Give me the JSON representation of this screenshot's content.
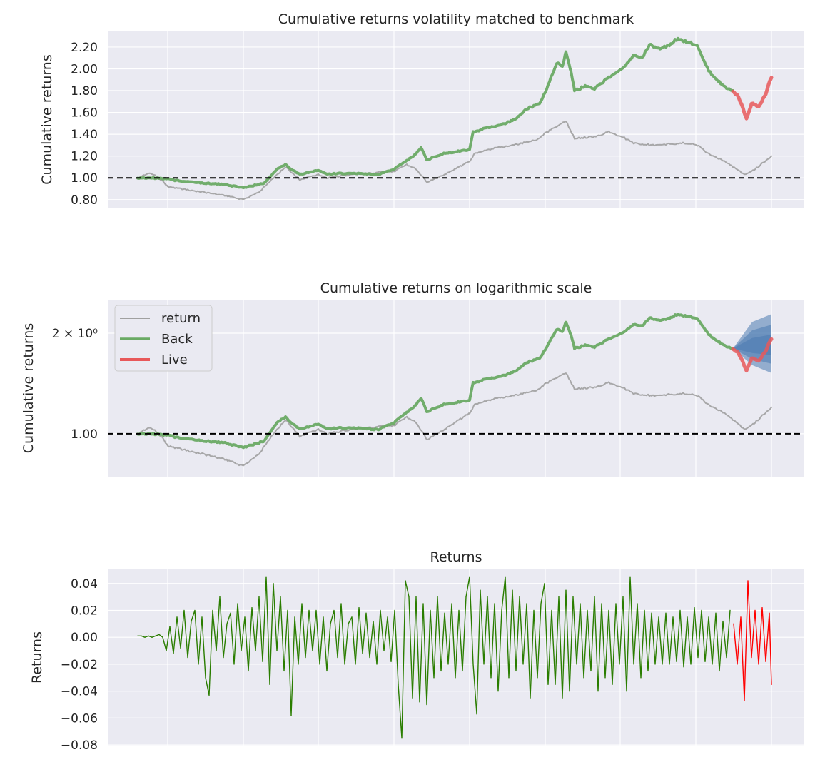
{
  "chart_data": [
    {
      "type": "line",
      "title": "Cumulative returns volatility matched to benchmark",
      "ylabel": "Cumulative returns",
      "xlabel": "",
      "yscale": "linear",
      "ylim": [
        0.72,
        2.35
      ],
      "xlim": [
        -42,
        934
      ],
      "yticks": [
        0.8,
        1.0,
        1.2,
        1.4,
        1.6,
        1.8,
        2.0,
        2.2
      ],
      "ytick_labels": [
        "0.80",
        "1.00",
        "1.20",
        "1.40",
        "1.60",
        "1.80",
        "2.00",
        "2.20"
      ],
      "xgrid": [
        42,
        148,
        253,
        359,
        465,
        571,
        676,
        782,
        888
      ],
      "baseline": 1.0,
      "grid": true,
      "series": [
        {
          "name": "return",
          "color": "#a0a0a0",
          "points": [
            [
              0,
              1.0
            ],
            [
              10,
              1.03
            ],
            [
              20,
              1.04
            ],
            [
              35,
              0.97
            ],
            [
              42,
              0.92
            ],
            [
              60,
              0.9
            ],
            [
              80,
              0.88
            ],
            [
              100,
              0.86
            ],
            [
              120,
              0.84
            ],
            [
              148,
              0.8
            ],
            [
              170,
              0.87
            ],
            [
              187,
              0.98
            ],
            [
              207,
              1.1
            ],
            [
              227,
              0.98
            ],
            [
              253,
              1.03
            ],
            [
              265,
              1.0
            ],
            [
              300,
              1.03
            ],
            [
              359,
              1.06
            ],
            [
              377,
              1.12
            ],
            [
              390,
              1.08
            ],
            [
              405,
              0.96
            ],
            [
              420,
              1.0
            ],
            [
              465,
              1.15
            ],
            [
              472,
              1.22
            ],
            [
              490,
              1.26
            ],
            [
              527,
              1.3
            ],
            [
              560,
              1.35
            ],
            [
              573,
              1.42
            ],
            [
              590,
              1.48
            ],
            [
              600,
              1.52
            ],
            [
              612,
              1.36
            ],
            [
              640,
              1.38
            ],
            [
              660,
              1.42
            ],
            [
              678,
              1.38
            ],
            [
              695,
              1.32
            ],
            [
              720,
              1.3
            ],
            [
              767,
              1.32
            ],
            [
              784,
              1.3
            ],
            [
              800,
              1.22
            ],
            [
              820,
              1.16
            ],
            [
              830,
              1.12
            ],
            [
              850,
              1.03
            ],
            [
              865,
              1.08
            ],
            [
              888,
              1.2
            ]
          ]
        },
        {
          "name": "Back",
          "color": "#6aaa64",
          "points": [
            [
              0,
              1.0
            ],
            [
              20,
              1.0
            ],
            [
              42,
              0.99
            ],
            [
              60,
              0.97
            ],
            [
              97,
              0.95
            ],
            [
              120,
              0.94
            ],
            [
              148,
              0.91
            ],
            [
              177,
              0.95
            ],
            [
              195,
              1.08
            ],
            [
              207,
              1.12
            ],
            [
              215,
              1.08
            ],
            [
              227,
              1.03
            ],
            [
              253,
              1.07
            ],
            [
              265,
              1.03
            ],
            [
              277,
              1.04
            ],
            [
              307,
              1.04
            ],
            [
              337,
              1.03
            ],
            [
              359,
              1.08
            ],
            [
              382,
              1.18
            ],
            [
              390,
              1.22
            ],
            [
              397,
              1.28
            ],
            [
              405,
              1.16
            ],
            [
              415,
              1.19
            ],
            [
              427,
              1.22
            ],
            [
              465,
              1.26
            ],
            [
              470,
              1.42
            ],
            [
              490,
              1.46
            ],
            [
              507,
              1.48
            ],
            [
              527,
              1.53
            ],
            [
              547,
              1.64
            ],
            [
              563,
              1.68
            ],
            [
              573,
              1.82
            ],
            [
              587,
              2.05
            ],
            [
              595,
              2.03
            ],
            [
              600,
              2.15
            ],
            [
              607,
              1.98
            ],
            [
              612,
              1.8
            ],
            [
              627,
              1.84
            ],
            [
              640,
              1.82
            ],
            [
              660,
              1.92
            ],
            [
              678,
              2.0
            ],
            [
              695,
              2.12
            ],
            [
              707,
              2.1
            ],
            [
              717,
              2.22
            ],
            [
              732,
              2.18
            ],
            [
              745,
              2.22
            ],
            [
              757,
              2.28
            ],
            [
              767,
              2.25
            ],
            [
              784,
              2.22
            ],
            [
              800,
              1.98
            ],
            [
              815,
              1.88
            ],
            [
              825,
              1.82
            ],
            [
              834,
              1.8
            ]
          ]
        },
        {
          "name": "Live",
          "color": "#e8585a",
          "points": [
            [
              834,
              1.8
            ],
            [
              842,
              1.74
            ],
            [
              850,
              1.6
            ],
            [
              853,
              1.55
            ],
            [
              860,
              1.68
            ],
            [
              870,
              1.65
            ],
            [
              878,
              1.74
            ],
            [
              888,
              1.92
            ]
          ]
        }
      ]
    },
    {
      "type": "line",
      "title": "Cumulative returns on logarithmic scale",
      "ylabel": "Cumulative returns",
      "yscale": "log",
      "ylim": [
        0.744,
        2.52
      ],
      "yticks": [
        1.0,
        2.0
      ],
      "ytick_labels": [
        "1.00",
        "2 × 10⁰"
      ],
      "legend": {
        "position": "upper-left",
        "entries": [
          "return",
          "Back",
          "Live"
        ]
      },
      "cone": {
        "start": [
          834,
          1.8
        ],
        "end_x": 888,
        "bands": [
          [
            1.52,
            2.28
          ],
          [
            1.62,
            2.12
          ],
          [
            1.72,
            1.98
          ]
        ],
        "color": "#4a7ab0"
      },
      "uses_series_of_chart": 0
    },
    {
      "type": "line",
      "title": "Returns",
      "ylabel": "Returns",
      "ylim": [
        -0.081,
        0.051
      ],
      "yticks": [
        -0.08,
        -0.06,
        -0.04,
        -0.02,
        0.0,
        0.02,
        0.04
      ],
      "ytick_labels": [
        "−0.08",
        "−0.06",
        "−0.04",
        "−0.02",
        "0.00",
        "0.02",
        "0.04"
      ],
      "x_step": 5,
      "series": [
        {
          "name": "Back",
          "color": "#2a7d00",
          "x_start": 0,
          "values": [
            0.001,
            0.001,
            0,
            0.001,
            0,
            0.001,
            0.002,
            0,
            -0.01,
            0.008,
            -0.012,
            0.015,
            -0.008,
            0.02,
            -0.015,
            0.012,
            0.02,
            -0.02,
            0.015,
            -0.03,
            -0.043,
            0.02,
            -0.01,
            0.03,
            -0.015,
            0.01,
            0.018,
            -0.02,
            0.025,
            -0.01,
            0.015,
            -0.025,
            0.022,
            -0.01,
            0.03,
            -0.018,
            0.045,
            -0.035,
            0.04,
            -0.01,
            0.03,
            -0.025,
            0.02,
            -0.058,
            0.015,
            -0.02,
            0.025,
            -0.015,
            0.02,
            -0.01,
            0.02,
            -0.02,
            0.015,
            -0.025,
            0.01,
            0.02,
            -0.015,
            0.025,
            -0.02,
            0.01,
            0.015,
            -0.02,
            0.022,
            -0.012,
            0.018,
            -0.015,
            0.012,
            -0.02,
            0.02,
            -0.01,
            0.015,
            -0.018,
            0.02,
            -0.035,
            -0.075,
            0.042,
            0.03,
            -0.045,
            0.03,
            -0.048,
            0.025,
            -0.05,
            0.02,
            -0.03,
            0.03,
            -0.025,
            0.018,
            -0.02,
            0.025,
            -0.03,
            0.02,
            -0.025,
            0.03,
            0.045,
            -0.02,
            -0.057,
            0.035,
            -0.02,
            0.03,
            -0.03,
            0.025,
            -0.04,
            0.02,
            0.045,
            -0.03,
            0.035,
            -0.025,
            0.03,
            -0.02,
            0.025,
            -0.045,
            0.02,
            -0.03,
            0.025,
            0.04,
            -0.035,
            0.02,
            -0.035,
            0.03,
            -0.045,
            0.035,
            -0.04,
            0.03,
            -0.02,
            0.025,
            -0.03,
            0.02,
            -0.025,
            0.03,
            -0.04,
            0.025,
            -0.03,
            0.02,
            -0.035,
            0.025,
            -0.02,
            0.03,
            -0.04,
            0.045,
            -0.02,
            0.025,
            -0.03,
            0.02,
            -0.025,
            0.018,
            -0.02,
            0.015,
            -0.02,
            0.018,
            -0.02,
            0.015,
            -0.018,
            0.02,
            -0.022,
            0.015,
            -0.02,
            0.022,
            -0.015,
            0.02,
            -0.018,
            0.015,
            -0.02,
            0.018,
            -0.025,
            0.012,
            -0.015,
            0.02
          ]
        },
        {
          "name": "Live",
          "color": "#ff0000",
          "x_start": 835,
          "values": [
            0.01,
            -0.02,
            0.015,
            -0.047,
            0.042,
            -0.015,
            0.02,
            -0.02,
            0.022,
            -0.018,
            0.018,
            -0.035
          ]
        }
      ]
    }
  ]
}
